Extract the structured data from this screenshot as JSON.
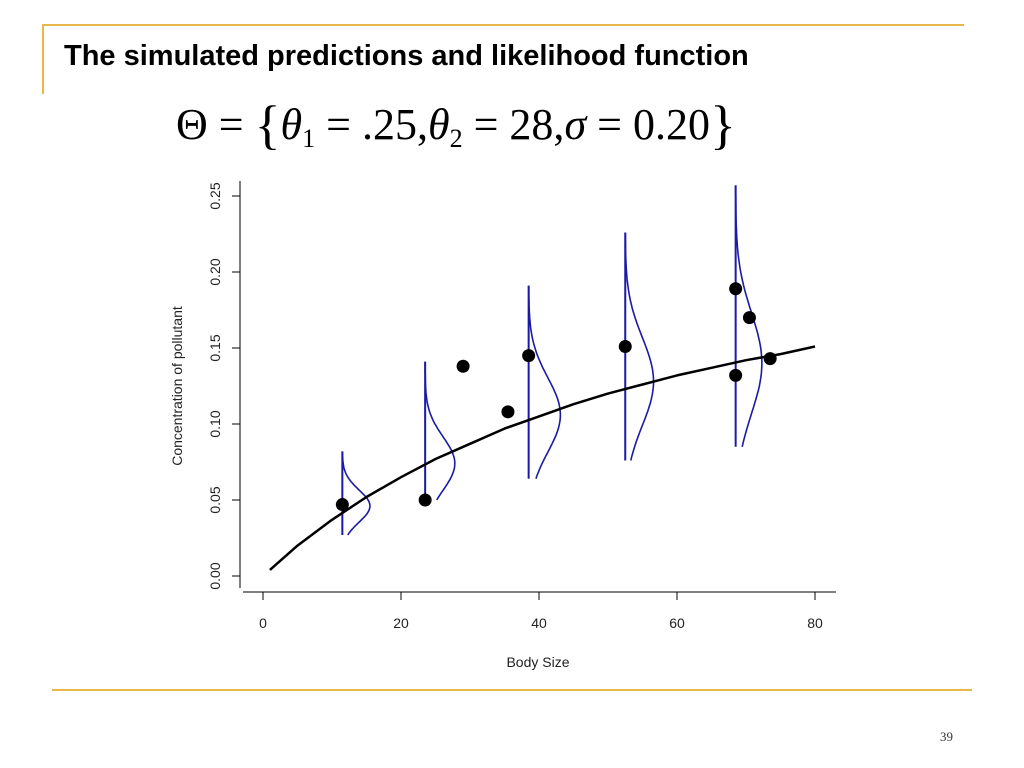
{
  "slide": {
    "title": "The simulated predictions and likelihood function",
    "page_number": "39",
    "accent_color": "#E8B84A",
    "formula": {
      "lhs": "Θ",
      "eq": "=",
      "open": "{",
      "p1_symbol": "θ",
      "p1_sub": "1",
      "p1_value": "= .25,",
      "p2_symbol": "θ",
      "p2_sub": "2",
      "p2_value": "= 28,",
      "p3_symbol": "σ",
      "p3_value": "= 0.20",
      "close": "}"
    }
  },
  "chart_data": {
    "type": "scatter",
    "title": "",
    "xlabel": "Body Size",
    "ylabel": "Concentration of pollutant",
    "xlim": [
      0,
      80
    ],
    "ylim": [
      0,
      0.25
    ],
    "x_ticks": [
      "0",
      "20",
      "40",
      "60",
      "80"
    ],
    "y_ticks": [
      "0.00",
      "0.05",
      "0.10",
      "0.15",
      "0.20",
      "0.25"
    ],
    "grid": false,
    "points": [
      {
        "x": 11.5,
        "y": 0.047
      },
      {
        "x": 23.5,
        "y": 0.05
      },
      {
        "x": 29.0,
        "y": 0.138
      },
      {
        "x": 35.5,
        "y": 0.108
      },
      {
        "x": 38.5,
        "y": 0.145
      },
      {
        "x": 52.5,
        "y": 0.151
      },
      {
        "x": 68.5,
        "y": 0.189
      },
      {
        "x": 70.5,
        "y": 0.17
      },
      {
        "x": 68.5,
        "y": 0.132
      },
      {
        "x": 73.5,
        "y": 0.143
      }
    ],
    "prediction_curve": {
      "color": "#000000",
      "x": [
        1,
        5,
        10,
        15,
        20,
        25,
        30,
        35,
        40,
        45,
        50,
        55,
        60,
        65,
        70,
        75,
        80
      ],
      "y": [
        0.004,
        0.02,
        0.037,
        0.052,
        0.065,
        0.077,
        0.087,
        0.097,
        0.105,
        0.113,
        0.12,
        0.126,
        0.132,
        0.137,
        0.142,
        0.146,
        0.151
      ]
    },
    "likelihood_densities": {
      "color": "#1a1aa6",
      "items": [
        {
          "x": 11.5,
          "mean": 0.046,
          "y_min": 0.027,
          "y_max": 0.082,
          "peak_dx": 4.0
        },
        {
          "x": 23.5,
          "mean": 0.074,
          "y_min": 0.05,
          "y_max": 0.141,
          "peak_dx": 4.3
        },
        {
          "x": 38.5,
          "mean": 0.106,
          "y_min": 0.064,
          "y_max": 0.191,
          "peak_dx": 4.6
        },
        {
          "x": 52.5,
          "mean": 0.128,
          "y_min": 0.076,
          "y_max": 0.226,
          "peak_dx": 4.1
        },
        {
          "x": 68.5,
          "mean": 0.14,
          "y_min": 0.085,
          "y_max": 0.257,
          "peak_dx": 3.8
        }
      ]
    }
  }
}
